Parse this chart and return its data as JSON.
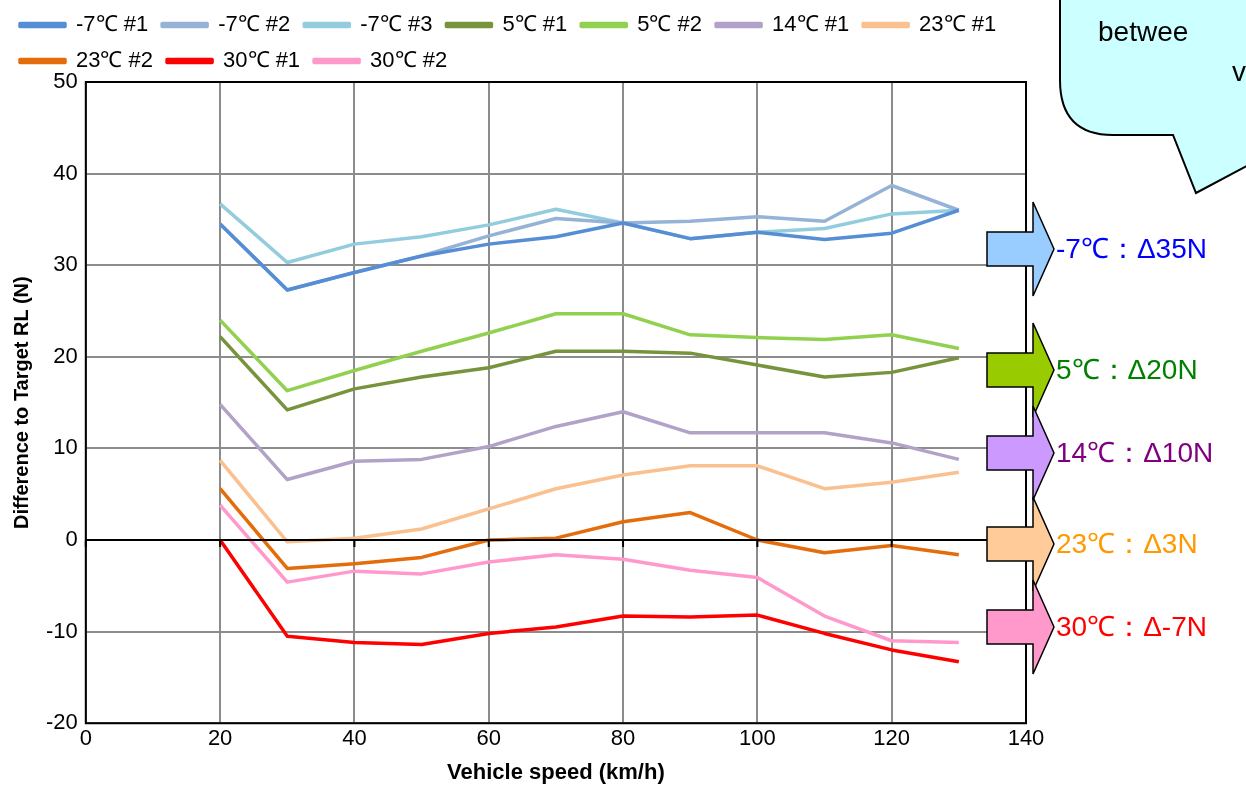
{
  "chart_data": {
    "type": "line",
    "xlabel": "Vehicle speed (km/h)",
    "ylabel": "Difference to Target RL (N)",
    "x": [
      20,
      30,
      40,
      50,
      60,
      70,
      80,
      90,
      100,
      110,
      120,
      130
    ],
    "xlim": [
      0,
      140
    ],
    "xticks": [
      0,
      20,
      40,
      60,
      80,
      100,
      120,
      140
    ],
    "ylim": [
      -20,
      50
    ],
    "yticks": [
      -20,
      -10,
      0,
      10,
      20,
      30,
      40,
      50
    ],
    "grid": true,
    "legend": "top",
    "marker": "none",
    "line_style": "solid",
    "ref_lines": [
      {
        "axis": "y",
        "value": 0,
        "color": "#000000"
      }
    ],
    "series": [
      {
        "name": "-7℃ #1",
        "color": "#558ed5",
        "values": [
          34.5,
          27.3,
          29.2,
          31,
          32.3,
          33.1,
          34.6,
          32.9,
          33.6,
          32.8,
          33.5,
          36
        ]
      },
      {
        "name": "-7℃ #2",
        "color": "#95b3d7",
        "values": [
          34.5,
          27.3,
          29.2,
          31,
          33.2,
          35.1,
          34.6,
          34.8,
          35.3,
          34.8,
          38.7,
          36
        ]
      },
      {
        "name": "-7℃ #3",
        "color": "#93cddd",
        "values": [
          36.7,
          30.3,
          32.3,
          33.1,
          34.4,
          36.1,
          34.6,
          32.9,
          33.6,
          34,
          35.6,
          36
        ]
      },
      {
        "name": "5℃ #1",
        "color": "#77933c",
        "values": [
          22.2,
          14.2,
          16.5,
          17.8,
          18.8,
          20.6,
          20.6,
          20.4,
          19.1,
          17.8,
          18.3,
          19.9
        ]
      },
      {
        "name": "5℃ #2",
        "color": "#92d050",
        "values": [
          24,
          16.3,
          18.5,
          20.6,
          22.6,
          24.7,
          24.7,
          22.4,
          22.1,
          21.9,
          22.4,
          20.9
        ]
      },
      {
        "name": "14℃ #1",
        "color": "#b3a2c7",
        "values": [
          14.8,
          6.6,
          8.6,
          8.8,
          10.2,
          12.4,
          14,
          11.7,
          11.7,
          11.7,
          10.6,
          8.8
        ]
      },
      {
        "name": "23℃ #1",
        "color": "#fac090",
        "values": [
          8.7,
          -0.2,
          0.2,
          1.2,
          3.4,
          5.6,
          7.1,
          8.1,
          8.1,
          5.6,
          6.3,
          7.4
        ]
      },
      {
        "name": "23℃ #2",
        "color": "#e46c0a",
        "values": [
          5.6,
          -3.1,
          -2.6,
          -1.9,
          0,
          0.2,
          2,
          3,
          0,
          -1.4,
          -0.6,
          -1.6
        ]
      },
      {
        "name": "30℃ #1",
        "color": "#ff0000",
        "values": [
          0,
          -10.5,
          -11.2,
          -11.4,
          -10.2,
          -9.5,
          -8.3,
          -8.4,
          -8.2,
          -10.2,
          -12,
          -13.3
        ]
      },
      {
        "name": "30℃ #2",
        "color": "#ff99cc",
        "values": [
          3.8,
          -4.6,
          -3.4,
          -3.7,
          -2.4,
          -1.6,
          -2.1,
          -3.3,
          -4.1,
          -8.3,
          -11,
          -11.2
        ]
      }
    ],
    "annotations": [
      "-7℃：Δ35N",
      "5℃：Δ20N",
      "14℃：Δ10N",
      "23℃：Δ3N",
      "30℃：Δ-7N",
      "betwee",
      "v"
    ]
  }
}
